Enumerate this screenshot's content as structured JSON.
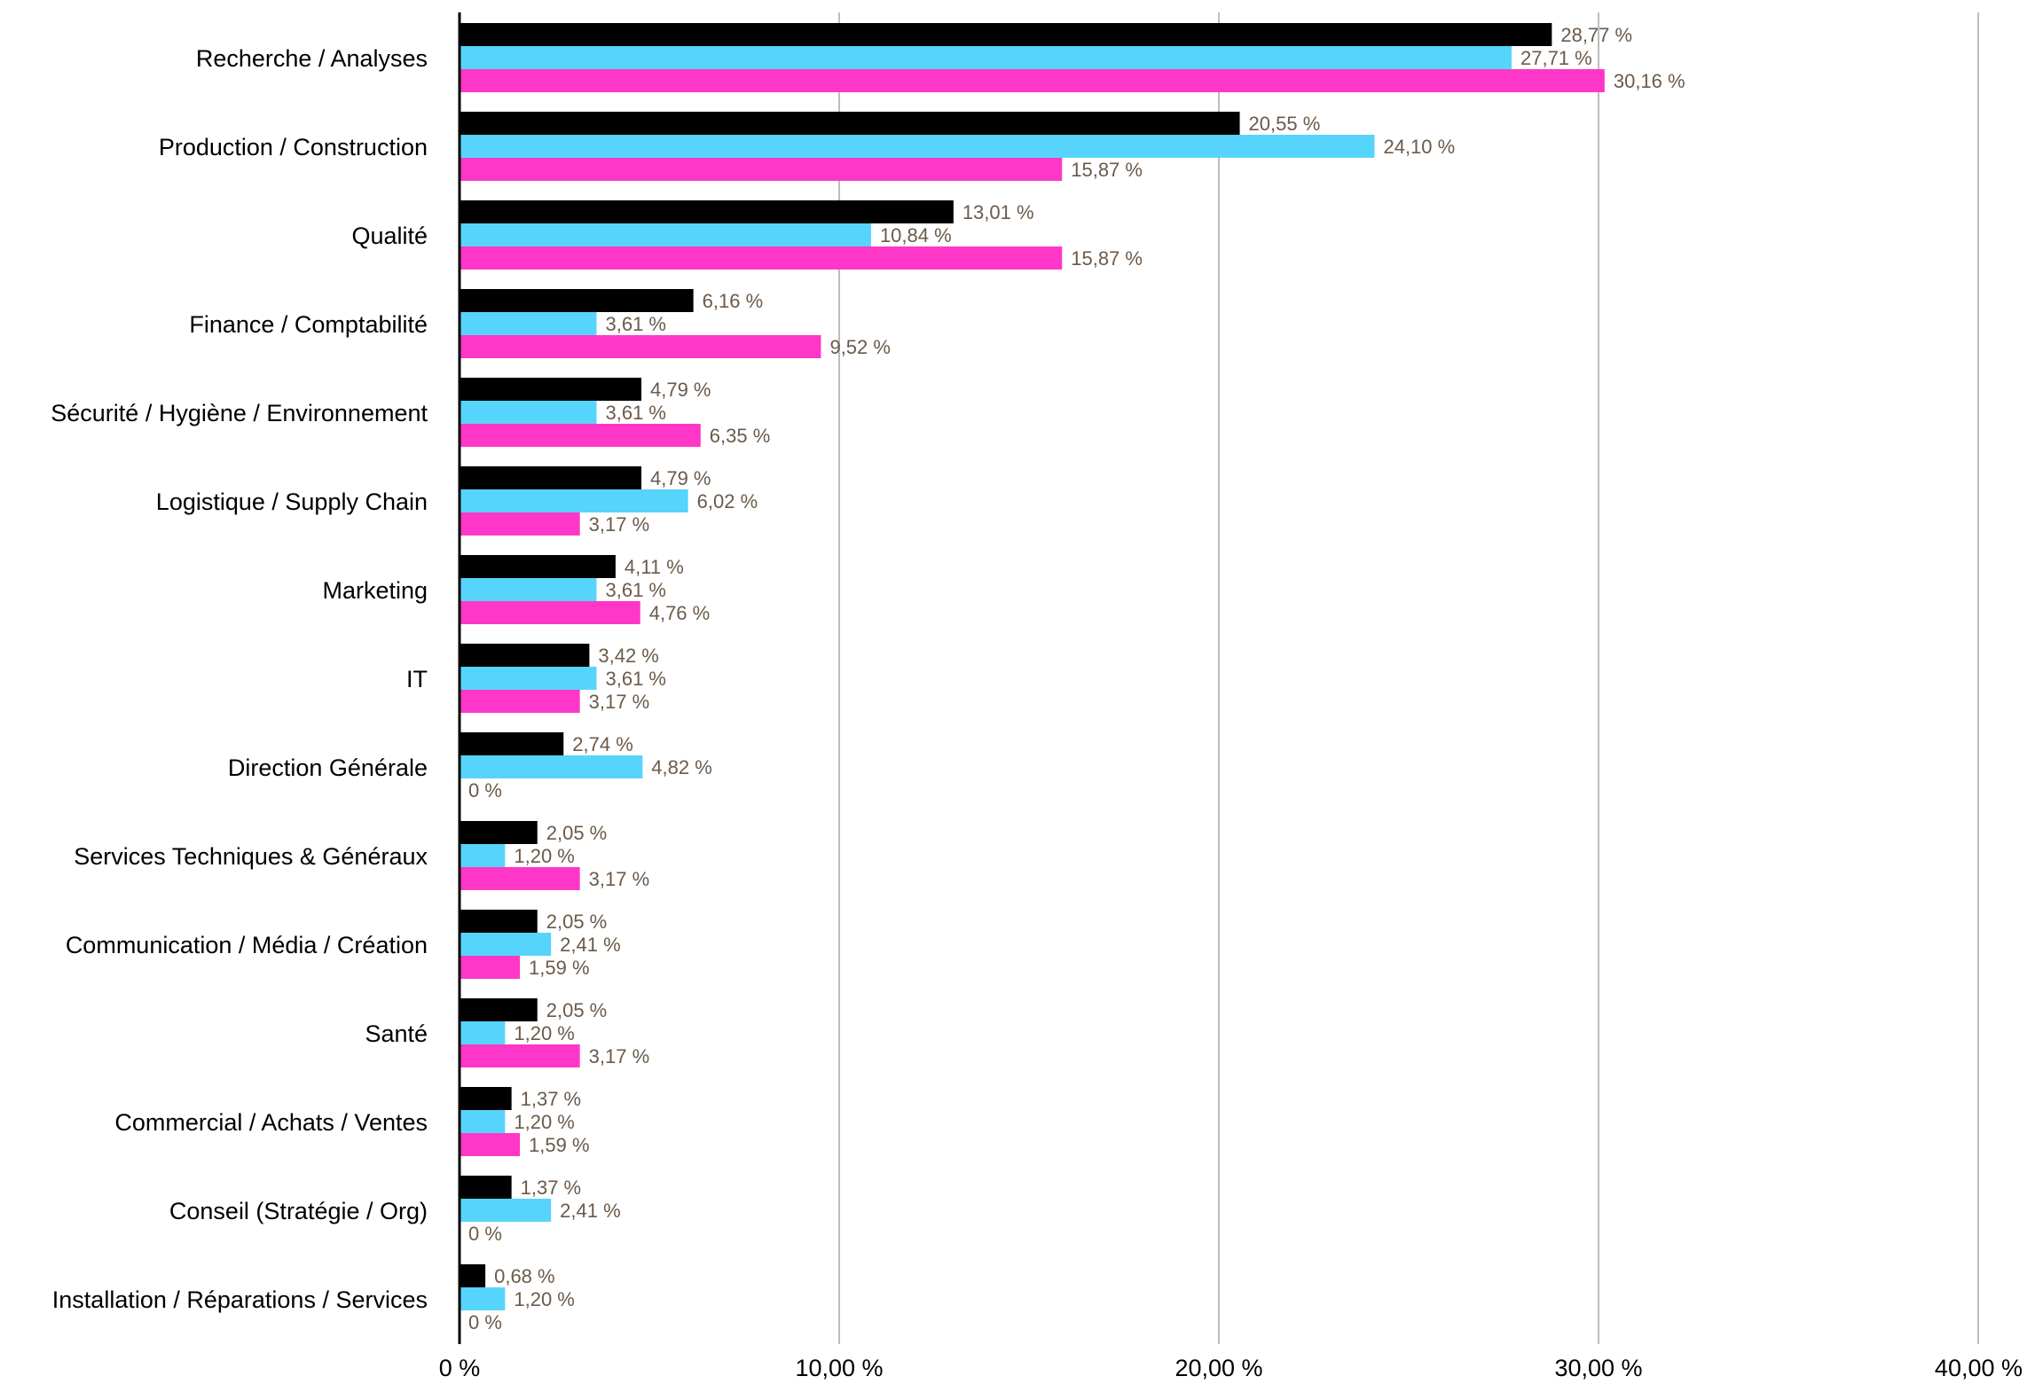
{
  "chart_data": {
    "type": "bar",
    "orientation": "horizontal",
    "categories": [
      "Recherche / Analyses",
      "Production / Construction",
      "Qualité",
      "Finance / Comptabilité",
      "Sécurité / Hygiène / Environnement",
      "Logistique / Supply Chain",
      "Marketing",
      "IT",
      "Direction Générale",
      "Services Techniques & Généraux",
      "Communication / Média / Création",
      "Santé",
      "Commercial / Achats / Ventes",
      "Conseil (Stratégie / Org)",
      "Installation / Réparations / Services"
    ],
    "series": [
      {
        "color": "#000000",
        "values": [
          28.77,
          20.55,
          13.01,
          6.16,
          4.79,
          4.79,
          4.11,
          3.42,
          2.74,
          2.05,
          2.05,
          2.05,
          1.37,
          1.37,
          0.68
        ],
        "labels": [
          "28,77 %",
          "20,55 %",
          "13,01 %",
          "6,16 %",
          "4,79 %",
          "4,79 %",
          "4,11 %",
          "3,42 %",
          "2,74 %",
          "2,05 %",
          "2,05 %",
          "2,05 %",
          "1,37 %",
          "1,37 %",
          "0,68 %"
        ]
      },
      {
        "color": "#57d4fb",
        "values": [
          27.71,
          24.1,
          10.84,
          3.61,
          3.61,
          6.02,
          3.61,
          3.61,
          4.82,
          1.2,
          2.41,
          1.2,
          1.2,
          2.41,
          1.2
        ],
        "labels": [
          "27,71 %",
          "24,10 %",
          "10,84 %",
          "3,61 %",
          "3,61 %",
          "6,02 %",
          "3,61 %",
          "3,61 %",
          "4,82 %",
          "1,20 %",
          "2,41 %",
          "1,20 %",
          "1,20 %",
          "2,41 %",
          "1,20 %"
        ]
      },
      {
        "color": "#ff37c8",
        "values": [
          30.16,
          15.87,
          15.87,
          9.52,
          6.35,
          3.17,
          4.76,
          3.17,
          0,
          3.17,
          1.59,
          3.17,
          1.59,
          0,
          0
        ],
        "labels": [
          "30,16 %",
          "15,87 %",
          "15,87 %",
          "9,52 %",
          "6,35 %",
          "3,17 %",
          "4,76 %",
          "3,17 %",
          "0 %",
          "3,17 %",
          "1,59 %",
          "3,17 %",
          "1,59 %",
          "0 %",
          "0 %"
        ]
      }
    ],
    "x_ticks": [
      0,
      10,
      20,
      30,
      40
    ],
    "x_tick_labels": [
      "0 %",
      "10,00 %",
      "20,00 %",
      "30,00 %",
      "40,00 %"
    ],
    "xlim": [
      0,
      40
    ],
    "title": "",
    "xlabel": "",
    "ylabel": "",
    "grid": "vertical",
    "grid_color": "#bdbdbd",
    "legend": "none"
  }
}
